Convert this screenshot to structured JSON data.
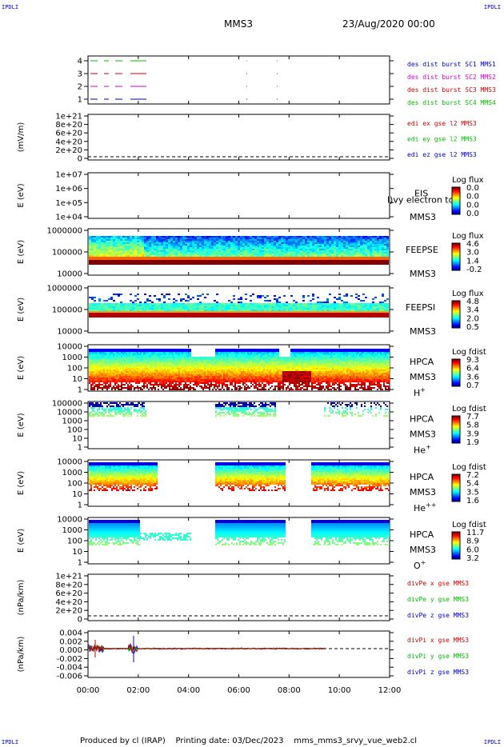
{
  "corner_labels": [
    "IPDLI",
    "IPDLI",
    "IPDLI",
    "IPDLI"
  ],
  "header": {
    "spacecraft": "MMS3",
    "datetime": "23/Aug/2020 00:00"
  },
  "footer": {
    "produced_by": "Produced by cl (IRAP)",
    "printing_date": "Printing date: 03/Dec/2023",
    "script": "mms_mms3_srvy_vue_web2.cl"
  },
  "colors": {
    "mms1": "#0000cc",
    "mms2": "#cc00cc",
    "mms3": "#cc0000",
    "mms4": "#00bb00",
    "x": "#cc0000",
    "y": "#00bb00",
    "z": "#0000cc",
    "pink": "#cc00cc"
  },
  "chart_data": [
    {
      "type": "line",
      "panel": "burst",
      "yticks": [
        "1",
        "2",
        "3",
        "4"
      ],
      "legend": [
        {
          "text": "des dist burst SC1 MMS1",
          "color": "mms1"
        },
        {
          "text": "des dist burst SC2 MMS2",
          "color": "pink"
        },
        {
          "text": "des dist burst SC3 MMS3",
          "color": "mms3"
        },
        {
          "text": "des dist burst SC4 MMS4",
          "color": "mms4"
        }
      ]
    },
    {
      "type": "line",
      "panel": "edi",
      "ylabel": "(mV/m)",
      "yticks": [
        "1e+21",
        "8e+20",
        "6e+20",
        "4e+20",
        "2e+20",
        "0"
      ],
      "legend": [
        {
          "text": "edi ex gse l2 MMS3",
          "color": "x"
        },
        {
          "text": "edi ey gse l2 MMS3",
          "color": "y"
        },
        {
          "text": "edi ez gse l2 MMS3",
          "color": "z"
        }
      ]
    },
    {
      "type": "heatmap",
      "panel": "eis",
      "ylabel": "E (eV)",
      "yticks": [
        "1e+07",
        "1e+06",
        "1e+05",
        "1e+04"
      ],
      "right_labels": [
        "EIS",
        "MMS3"
      ],
      "overlay_text": "l)vy electron to",
      "cbar_title": "Log flux",
      "cbar_ticks": [
        "0.0",
        "0.0",
        "0.0",
        "0.0"
      ]
    },
    {
      "type": "heatmap",
      "panel": "feepse",
      "ylabel": "E (eV)",
      "yticks": [
        "1000000",
        "100000",
        "10000"
      ],
      "right_labels": [
        "FEEPSE",
        "MMS3"
      ],
      "cbar_title": "Log flux",
      "cbar_ticks": [
        "4.6",
        "3.0",
        "1.4",
        "-0.2"
      ]
    },
    {
      "type": "heatmap",
      "panel": "feepsi",
      "ylabel": "E (eV)",
      "yticks": [
        "1000000",
        "100000",
        "10000"
      ],
      "right_labels": [
        "FEEPSI",
        "MMS3"
      ],
      "cbar_title": "Log flux",
      "cbar_ticks": [
        "4.8",
        "3.4",
        "2.0",
        "0.5"
      ]
    },
    {
      "type": "heatmap",
      "panel": "hpca_h",
      "ylabel": "E (eV)",
      "yticks": [
        "10000",
        "1000",
        "100",
        "10",
        "1"
      ],
      "right_labels": [
        "HPCA",
        "MMS3"
      ],
      "species": "H",
      "species_sup": "+",
      "cbar_title": "Log fdist",
      "cbar_ticks": [
        "9.3",
        "6.4",
        "3.6",
        "0.7"
      ]
    },
    {
      "type": "heatmap",
      "panel": "hpca_he",
      "ylabel": "E (eV)",
      "yticks": [
        "100000",
        "10000",
        "1000",
        "100",
        "10",
        "1"
      ],
      "right_labels": [
        "HPCA",
        "MMS3"
      ],
      "species": "He",
      "species_sup": "+",
      "cbar_title": "Log fdist",
      "cbar_ticks": [
        "7.7",
        "5.8",
        "3.9",
        "1.9"
      ]
    },
    {
      "type": "heatmap",
      "panel": "hpca_he2",
      "ylabel": "E (eV)",
      "yticks": [
        "10000",
        "1000",
        "100",
        "10",
        "1"
      ],
      "right_labels": [
        "HPCA",
        "MMS3"
      ],
      "species": "He",
      "species_sup": "++",
      "cbar_title": "Log fdist",
      "cbar_ticks": [
        "7.2",
        "5.4",
        "3.5",
        "1.6"
      ]
    },
    {
      "type": "heatmap",
      "panel": "hpca_o",
      "ylabel": "E (eV)",
      "yticks": [
        "10000",
        "1000",
        "100",
        "10",
        "1"
      ],
      "right_labels": [
        "HPCA",
        "MMS3"
      ],
      "species": "O",
      "species_sup": "+",
      "cbar_title": "Log fdist",
      "cbar_ticks": [
        "11.7",
        "8.9",
        "6.0",
        "3.2"
      ]
    },
    {
      "type": "line",
      "panel": "divpe",
      "ylabel": "(nPa/km)",
      "yticks": [
        "1e+21",
        "8e+20",
        "6e+20",
        "4e+20",
        "2e+20",
        "0"
      ],
      "legend": [
        {
          "text": "divPe x gse MMS3",
          "color": "x"
        },
        {
          "text": "divPe y gse MMS3",
          "color": "y"
        },
        {
          "text": "divPe z gse MMS3",
          "color": "z"
        }
      ]
    },
    {
      "type": "line",
      "panel": "divpi",
      "ylabel": "(nPa/km)",
      "yticks": [
        "0.004",
        "0.002",
        "0.000",
        "-0.002",
        "-0.004",
        "-0.006"
      ],
      "legend": [
        {
          "text": "divPi x gse MMS3",
          "color": "x"
        },
        {
          "text": "divPi y gse MMS3",
          "color": "y"
        },
        {
          "text": "divPi z gse MMS3",
          "color": "z"
        }
      ]
    }
  ],
  "xticks": [
    "00:00",
    "02:00",
    "04:00",
    "06:00",
    "08:00",
    "10:00",
    "12:00"
  ]
}
